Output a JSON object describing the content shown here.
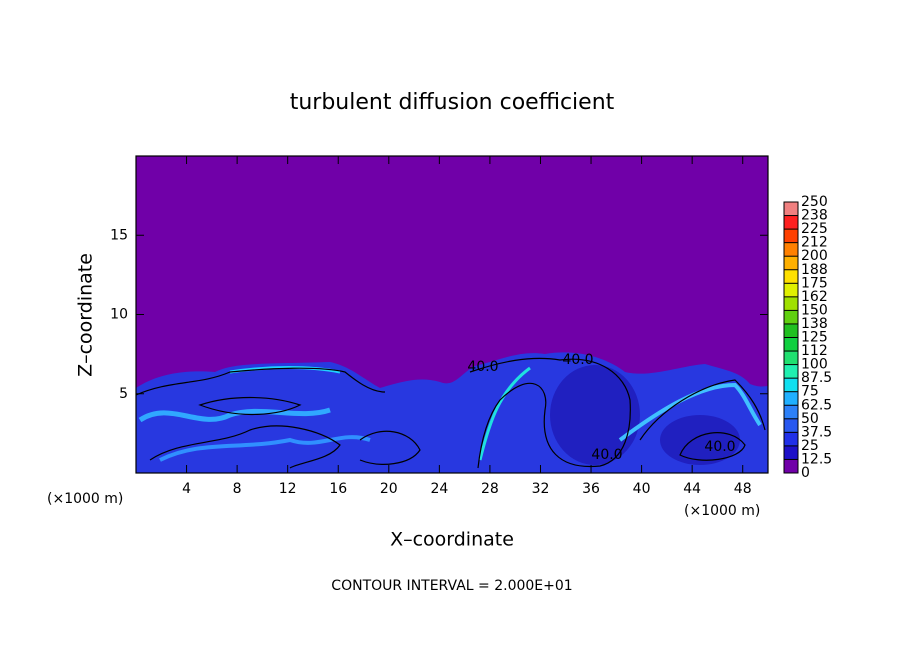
{
  "chart_data": {
    "type": "contour",
    "title": "turbulent diffusion coefficient",
    "xlabel": "X–coordinate",
    "ylabel": "Z–coordinate",
    "x_unit": "(×1000 m)",
    "footer": "CONTOUR INTERVAL = 2.000E+01",
    "xlim": [
      0,
      50
    ],
    "xticks": [
      4,
      8,
      12,
      16,
      20,
      24,
      28,
      32,
      36,
      40,
      44,
      48
    ],
    "ylim": [
      0,
      20
    ],
    "yticks": [
      5,
      10,
      15
    ],
    "annotations": [
      "40.0",
      "40.0",
      "40.0",
      "40.0"
    ],
    "colorbar": {
      "ticks": [
        0,
        12.5,
        25,
        37.5,
        50,
        62.5,
        75,
        87.5,
        100,
        {
          "value": 112.5,
          "label": "112"
        },
        125,
        {
          "value": 137.5,
          "label": "138"
        },
        150,
        {
          "value": 162.5,
          "label": "162"
        },
        175,
        {
          "value": 187.5,
          "label": "188"
        },
        200,
        {
          "value": 212.5,
          "label": "212"
        },
        225,
        {
          "value": 237.5,
          "label": "238"
        },
        250
      ],
      "colors": [
        "#7000a8",
        "#1e10c8",
        "#2030e8",
        "#2858f0",
        "#2c80f8",
        "#20b0ff",
        "#10e0f0",
        "#20f0b0",
        "#20e070",
        "#10d040",
        "#20c020",
        "#60d010",
        "#a0e000",
        "#e0f000",
        "#ffe000",
        "#ffb000",
        "#ff8000",
        "#ff4000",
        "#ff2020",
        "#f08080"
      ]
    }
  }
}
